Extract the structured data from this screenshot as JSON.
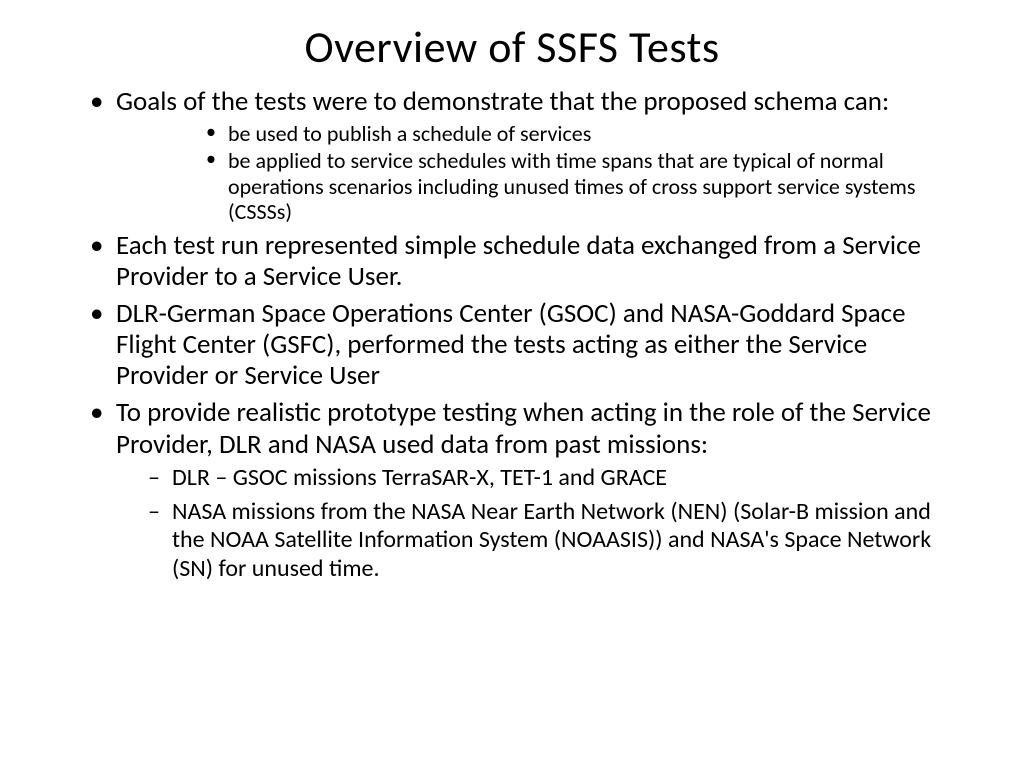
{
  "slide": {
    "title": "Overview of SSFS Tests",
    "bullets": [
      {
        "text": "Goals of the tests were to demonstrate that the proposed schema can:",
        "sub_style": "dot",
        "sub": [
          "be used to publish a schedule of services",
          "be applied to service schedules with time spans that are typical of normal operations scenarios including unused times of cross support service systems (CSSSs)"
        ]
      },
      {
        "text": "Each test run represented simple schedule data exchanged from a Service Provider to a Service User."
      },
      {
        "text": "DLR-German Space Operations Center (GSOC) and NASA-Goddard Space Flight Center (GSFC), performed the tests acting as either the Service Provider or Service User"
      },
      {
        "text": "To provide realistic prototype testing when acting in the role of the Service Provider, DLR and NASA used data from past missions:",
        "sub_style": "dash",
        "sub": [
          "DLR – GSOC missions TerraSAR-X, TET-1 and GRACE",
          "NASA missions from the NASA Near Earth Network (NEN) (Solar-B mission and the NOAA Satellite Information System (NOAASIS)) and NASA's Space Network (SN) for unused time."
        ]
      }
    ]
  },
  "style": {
    "background_color": "#ffffff",
    "text_color": "#000000",
    "title_fontsize": 44,
    "body_fontsize": 27,
    "sub_dot_fontsize": 22,
    "sub_dash_fontsize": 24,
    "font_family": "Calibri"
  }
}
